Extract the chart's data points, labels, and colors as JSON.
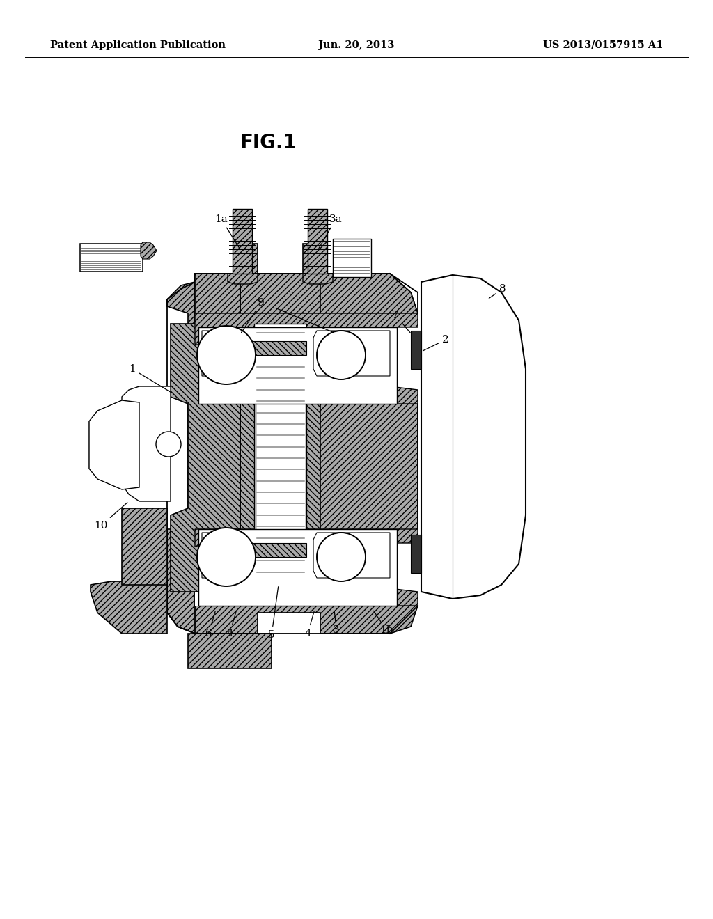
{
  "background_color": "#ffffff",
  "header_left": "Patent Application Publication",
  "header_center": "Jun. 20, 2013",
  "header_right": "US 2013/0157915 A1",
  "fig_label": "FIG.1",
  "header_fontsize": 10.5,
  "fig_label_fontsize": 20,
  "annotation_fontsize": 11,
  "line_color": "#000000",
  "hatch_color": "#aaaaaa",
  "white": "#ffffff",
  "light_gray": "#d8d8d8"
}
